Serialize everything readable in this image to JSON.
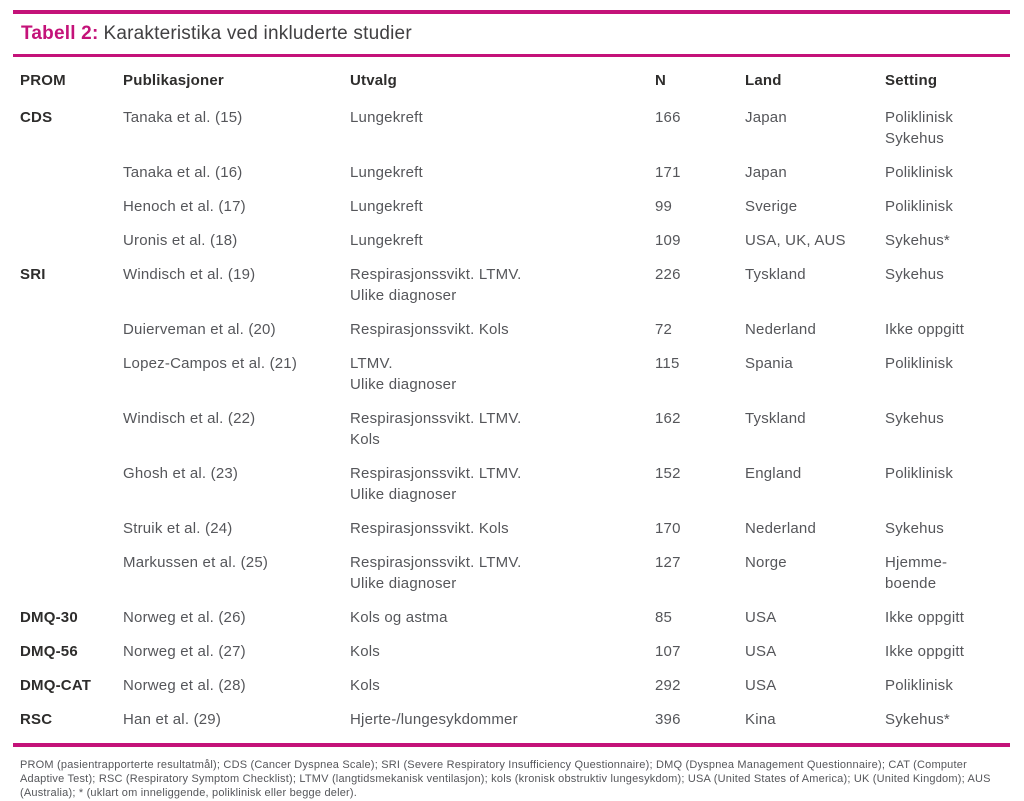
{
  "colors": {
    "accent": "#C41279"
  },
  "title": {
    "label": "Tabell 2:",
    "text": "Karakteristika ved inkluderte studier"
  },
  "table": {
    "columns": [
      "PROM",
      "Publikasjoner",
      "Utvalg",
      "N",
      "Land",
      "Setting"
    ],
    "rows": [
      {
        "prom": "CDS",
        "publication": "Tanaka et al. (15)",
        "sample": "Lungekreft",
        "n": "166",
        "country": "Japan",
        "setting": "Poliklinisk\nSykehus"
      },
      {
        "prom": "",
        "publication": "Tanaka et al. (16)",
        "sample": "Lungekreft",
        "n": "171",
        "country": "Japan",
        "setting": "Poliklinisk"
      },
      {
        "prom": "",
        "publication": "Henoch et al. (17)",
        "sample": "Lungekreft",
        "n": "99",
        "country": "Sverige",
        "setting": "Poliklinisk"
      },
      {
        "prom": "",
        "publication": "Uronis et al. (18)",
        "sample": "Lungekreft",
        "n": "109",
        "country": "USA, UK, AUS",
        "setting": "Sykehus*"
      },
      {
        "prom": "SRI",
        "publication": "Windisch et al. (19)",
        "sample": "Respirasjonssvikt. LTMV.\nUlike diagnoser",
        "n": "226",
        "country": "Tyskland",
        "setting": "Sykehus"
      },
      {
        "prom": "",
        "publication": "Duierveman et al. (20)",
        "sample": "Respirasjonssvikt. Kols",
        "n": "72",
        "country": "Nederland",
        "setting": "Ikke oppgitt"
      },
      {
        "prom": "",
        "publication": "Lopez-Campos et al. (21)",
        "sample": "LTMV.\nUlike diagnoser",
        "n": "115",
        "country": "Spania",
        "setting": "Poliklinisk"
      },
      {
        "prom": "",
        "publication": "Windisch et al. (22)",
        "sample": "Respirasjonssvikt. LTMV.\nKols",
        "n": "162",
        "country": "Tyskland",
        "setting": "Sykehus"
      },
      {
        "prom": "",
        "publication": "Ghosh et al. (23)",
        "sample": "Respirasjonssvikt. LTMV.\nUlike diagnoser",
        "n": "152",
        "country": "England",
        "setting": "Poliklinisk"
      },
      {
        "prom": "",
        "publication": "Struik et al. (24)",
        "sample": "Respirasjonssvikt. Kols",
        "n": "170",
        "country": "Nederland",
        "setting": "Sykehus"
      },
      {
        "prom": "",
        "publication": "Markussen et al. (25)",
        "sample": "Respirasjonssvikt. LTMV.\nUlike diagnoser",
        "n": "127",
        "country": "Norge",
        "setting": "Hjemme-\nboende"
      },
      {
        "prom": "DMQ-30",
        "publication": "Norweg et al. (26)",
        "sample": "Kols og astma",
        "n": "85",
        "country": "USA",
        "setting": "Ikke oppgitt"
      },
      {
        "prom": "DMQ-56",
        "publication": "Norweg et al. (27)",
        "sample": "Kols",
        "n": "107",
        "country": "USA",
        "setting": "Ikke oppgitt"
      },
      {
        "prom": "DMQ-CAT",
        "publication": "Norweg et al. (28)",
        "sample": "Kols",
        "n": "292",
        "country": "USA",
        "setting": "Poliklinisk"
      },
      {
        "prom": "RSC",
        "publication": "Han et al. (29)",
        "sample": "Hjerte-/lungesykdommer",
        "n": "396",
        "country": "Kina",
        "setting": "Sykehus*"
      }
    ]
  },
  "footnote": "PROM (pasientrapporterte resultatmål); CDS (Cancer Dyspnea Scale); SRI (Severe Respiratory Insufficiency Questionnaire); DMQ (Dyspnea Management Questionnaire); CAT (Computer Adaptive Test); RSC (Respiratory Symptom Checklist); LTMV (langtidsmekanisk ventilasjon); kols (kronisk obstruktiv lungesykdom); USA (United States of America); UK (United Kingdom); AUS (Australia); * (uklart om inneliggende, poliklinisk eller begge deler)."
}
